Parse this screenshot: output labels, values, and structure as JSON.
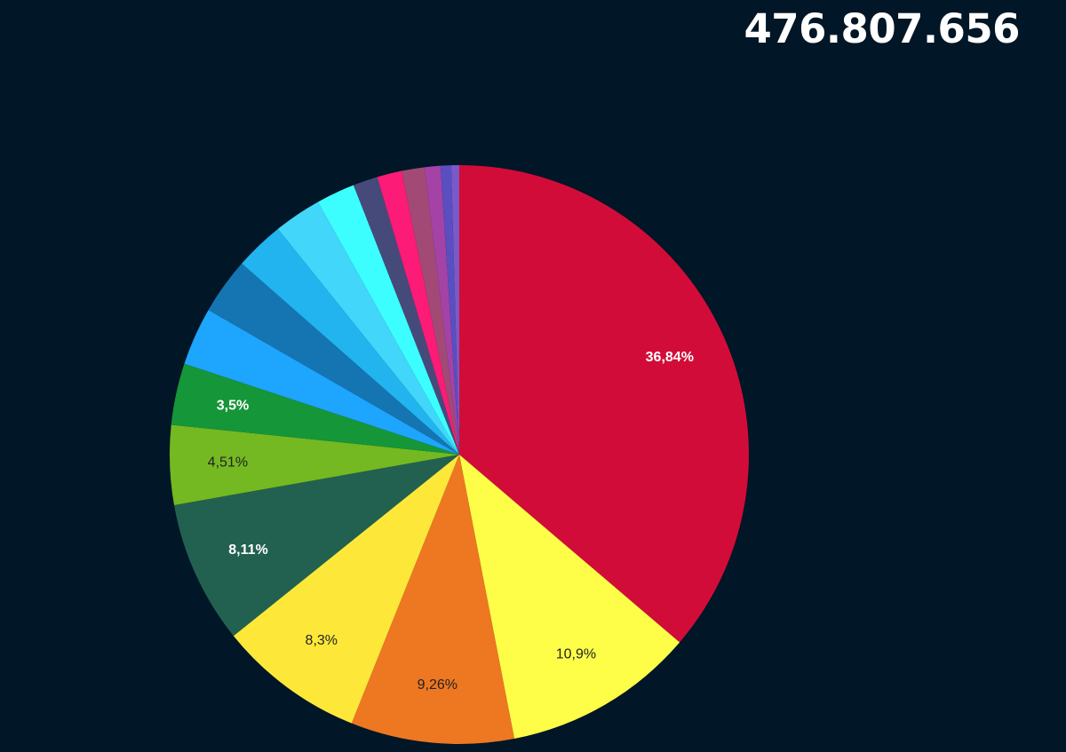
{
  "header": {
    "total": "476.807.656"
  },
  "chart_data": {
    "type": "pie",
    "start_angle_deg": 0,
    "direction": "clockwise",
    "slices": [
      {
        "value": 36.84,
        "label": "36,84%",
        "color": "#d20c38",
        "label_color": "#ffffff"
      },
      {
        "value": 10.9,
        "label": "10,9%",
        "color": "#fefe48",
        "label_color": "#222222"
      },
      {
        "value": 9.26,
        "label": "9,26%",
        "color": "#ee7721",
        "label_color": "#222222"
      },
      {
        "value": 8.3,
        "label": "8,3%",
        "color": "#fde83a",
        "label_color": "#222222"
      },
      {
        "value": 8.11,
        "label": "8,11%",
        "color": "#22614f",
        "label_color": "#ffffff"
      },
      {
        "value": 4.51,
        "label": "4,51%",
        "color": "#74b922",
        "label_color": "#222222"
      },
      {
        "value": 3.5,
        "label": "3,5%",
        "color": "#159638",
        "label_color": "#ffffff"
      },
      {
        "value": 3.3,
        "label": "",
        "color": "#1ea5fd",
        "label_color": "#ffffff"
      },
      {
        "value": 3.2,
        "label": "",
        "color": "#1575b2",
        "label_color": "#ffffff"
      },
      {
        "value": 2.8,
        "label": "",
        "color": "#22b4ee",
        "label_color": "#ffffff"
      },
      {
        "value": 2.7,
        "label": "",
        "color": "#42d6fa",
        "label_color": "#ffffff"
      },
      {
        "value": 2.2,
        "label": "",
        "color": "#3cfefe",
        "label_color": "#ffffff"
      },
      {
        "value": 1.4,
        "label": "",
        "color": "#464a7a",
        "label_color": "#ffffff"
      },
      {
        "value": 1.4,
        "label": "",
        "color": "#fc1b76",
        "label_color": "#ffffff"
      },
      {
        "value": 1.3,
        "label": "",
        "color": "#a24a75",
        "label_color": "#ffffff"
      },
      {
        "value": 0.9,
        "label": "",
        "color": "#a442a6",
        "label_color": "#ffffff"
      },
      {
        "value": 0.6,
        "label": "",
        "color": "#5a4ec0",
        "label_color": "#ffffff"
      },
      {
        "value": 0.45,
        "label": "",
        "color": "#7a59c8",
        "label_color": "#ffffff"
      }
    ]
  }
}
